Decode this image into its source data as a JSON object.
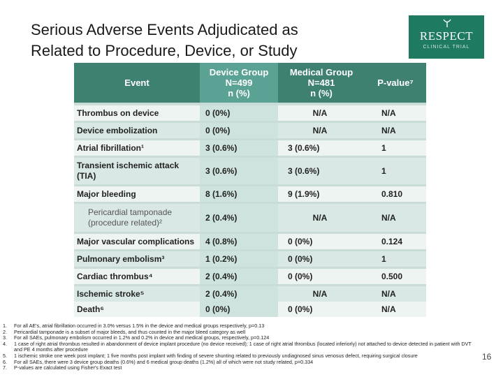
{
  "title": {
    "line1": "Serious Adverse Events Adjudicated as",
    "line2": "Related to Procedure, Device, or Study"
  },
  "logo": {
    "word": "RESPECT",
    "subtitle": "CLINICAL TRIAL"
  },
  "table": {
    "headers": {
      "event": "Event",
      "device": [
        "Device Group",
        "N=499",
        "n (%)"
      ],
      "medical": [
        "Medical Group",
        "N=481",
        "n (%)"
      ],
      "pvalue": "P-value⁷"
    },
    "rows": [
      {
        "event": "Thrombus on device",
        "device": "0 (0%)",
        "medical": "N/A",
        "p": "N/A"
      },
      {
        "event": "Device embolization",
        "device": "0 (0%)",
        "medical": "N/A",
        "p": "N/A"
      },
      {
        "event": "Atrial fibrillation¹",
        "device": "3 (0.6%)",
        "medical": "3 (0.6%)",
        "p": "1"
      },
      {
        "event": "Transient ischemic attack (TIA)",
        "device": "3 (0.6%)",
        "medical": "3 (0.6%)",
        "p": "1"
      },
      {
        "event": "Major bleeding",
        "device": "8 (1.6%)",
        "medical": "9 (1.9%)",
        "p": "0.810"
      },
      {
        "event": "Pericardial tamponade (procedure related)²",
        "device": "2 (0.4%)",
        "medical": "N/A",
        "p": "N/A"
      },
      {
        "event": "Major vascular complications",
        "device": "4 (0.8%)",
        "medical": "0 (0%)",
        "p": "0.124"
      },
      {
        "event": "Pulmonary embolism³",
        "device": "1 (0.2%)",
        "medical": "0 (0%)",
        "p": "1"
      },
      {
        "event": "Cardiac thrombus⁴",
        "device": "2 (0.4%)",
        "medical": "0 (0%)",
        "p": "0.500"
      },
      {
        "event": "Ischemic stroke⁵",
        "device": "2 (0.4%)",
        "medical": "N/A",
        "p": "N/A"
      },
      {
        "event": "Death⁶",
        "device": "0 (0%)",
        "medical": "0 (0%)",
        "p": "N/A"
      }
    ]
  },
  "footnotes": [
    {
      "num": "1.",
      "text": "For all AE's, atrial fibrillation occurred in 3.0% versus 1.5% in the device and medical groups respectively, p=0.13"
    },
    {
      "num": "2.",
      "text": "Pericardial tamponade is a subset of major bleeds, and thus counted in the major bleed category as well"
    },
    {
      "num": "3.",
      "text": "For all SAEs, pulmonary embolism occurred in 1.2% and 0.2% in device and medical groups, respectively, p=0.124"
    },
    {
      "num": "4.",
      "text": "1 case of right atrial thrombus resulted in abandonment of device implant procedure (no device received); 1 case of right atrial thrombus (located inferiorly) not attached to device detected in patient with DVT and PE 4 months after procedure"
    },
    {
      "num": "5.",
      "text": "1 ischemic stroke one week post implant; 1 five months post implant with finding of severe shunting related to previously undiagnosed sinus venosus defect, requiring surgical closure"
    },
    {
      "num": "6.",
      "text": "For all SAEs, there were 3 device group deaths (0.6%) and 6 medical group deaths (1.2%) all of which were not study related, p=0.334"
    },
    {
      "num": "7.",
      "text": "P-values are calculated using Fisher's Exact test"
    }
  ],
  "page_number": "16",
  "colors": {
    "header": "#3e8171",
    "header_device": "#5aa293",
    "logo": "#1f7a62"
  }
}
